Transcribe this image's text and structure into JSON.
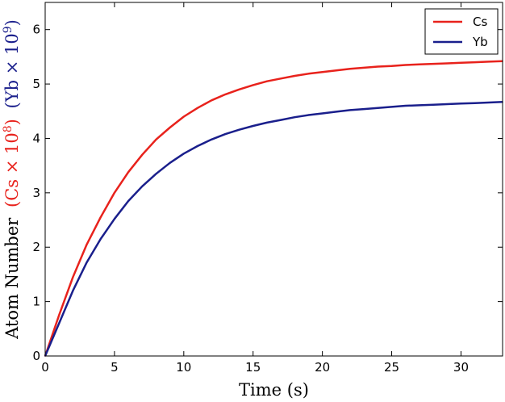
{
  "chart_data": {
    "type": "line",
    "xlabel": "Time (s)",
    "ylabel": {
      "prefix": "Atom Number",
      "parts": [
        {
          "text": "(Cs × 10",
          "sup": "8",
          "close": ")",
          "color": "#e8221c"
        },
        {
          "text": "(Yb × 10",
          "sup": "9",
          "close": ")",
          "color": "#1a1f8c"
        }
      ]
    },
    "xlim": [
      0,
      33
    ],
    "ylim": [
      0,
      6.5
    ],
    "xticks": [
      0,
      5,
      10,
      15,
      20,
      25,
      30
    ],
    "yticks": [
      0,
      1,
      2,
      3,
      4,
      5,
      6
    ],
    "grid": false,
    "legend": {
      "placement": "top-right"
    },
    "series": [
      {
        "name": "Cs",
        "color": "#e8221c",
        "x": [
          0,
          1,
          2,
          3,
          4,
          5,
          6,
          7,
          8,
          9,
          10,
          11,
          12,
          13,
          14,
          15,
          16,
          17,
          18,
          19,
          20,
          21,
          22,
          23,
          24,
          25,
          26,
          27,
          28,
          29,
          30,
          31,
          32,
          33
        ],
        "values": [
          0,
          0.75,
          1.45,
          2.05,
          2.55,
          3.0,
          3.38,
          3.7,
          3.98,
          4.2,
          4.4,
          4.56,
          4.7,
          4.81,
          4.9,
          4.98,
          5.05,
          5.1,
          5.15,
          5.19,
          5.22,
          5.25,
          5.28,
          5.3,
          5.32,
          5.33,
          5.35,
          5.36,
          5.37,
          5.38,
          5.39,
          5.4,
          5.41,
          5.42
        ]
      },
      {
        "name": "Yb",
        "color": "#1a1f8c",
        "x": [
          0,
          1,
          2,
          3,
          4,
          5,
          6,
          7,
          8,
          9,
          10,
          11,
          12,
          13,
          14,
          15,
          16,
          17,
          18,
          19,
          20,
          21,
          22,
          23,
          24,
          25,
          26,
          27,
          28,
          29,
          30,
          31,
          32,
          33
        ],
        "values": [
          0,
          0.6,
          1.2,
          1.72,
          2.15,
          2.52,
          2.85,
          3.12,
          3.35,
          3.55,
          3.72,
          3.86,
          3.98,
          4.08,
          4.16,
          4.23,
          4.29,
          4.34,
          4.39,
          4.43,
          4.46,
          4.49,
          4.52,
          4.54,
          4.56,
          4.58,
          4.6,
          4.61,
          4.62,
          4.63,
          4.64,
          4.65,
          4.66,
          4.67
        ]
      }
    ]
  }
}
